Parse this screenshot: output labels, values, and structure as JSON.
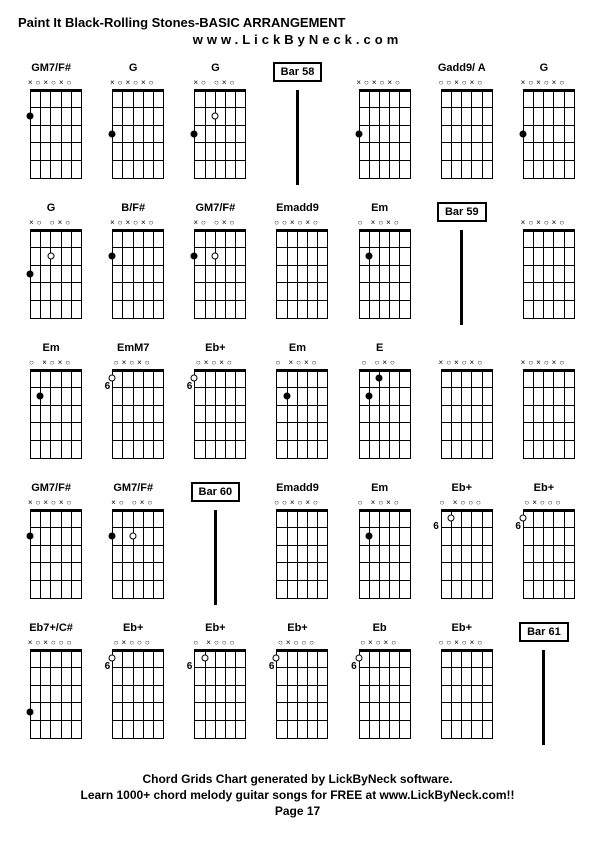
{
  "title": "Paint It Black-Rolling Stones-BASIC ARRANGEMENT",
  "subtitle": "www.LickByNeck.com",
  "footer": {
    "line1": "Chord Grids Chart generated by LickByNeck software.",
    "line2": "Learn 1000+ chord melody guitar songs for FREE at www.LickByNeck.com!!",
    "line3": "Page 17"
  },
  "diagram": {
    "width": 52,
    "height": 90,
    "num_strings": 6,
    "num_frets": 5,
    "nut_thickness": 3,
    "dot_size": 7,
    "colors": {
      "background": "#ffffff",
      "lines": "#000000",
      "dot": "#000000",
      "text": "#000000"
    }
  },
  "cells": [
    {
      "type": "chord",
      "name": "GM7/F#",
      "markers": "×○×○×○",
      "fret": "",
      "dots": [
        {
          "s": 0,
          "f": 2
        }
      ]
    },
    {
      "type": "chord",
      "name": "G",
      "markers": "×○×○×○",
      "fret": "",
      "dots": [
        {
          "s": 0,
          "f": 3
        }
      ]
    },
    {
      "type": "chord",
      "name": "G",
      "markers": "×○ ○×○",
      "fret": "",
      "dots": [
        {
          "s": 0,
          "f": 3
        },
        {
          "s": 2,
          "f": 2,
          "open": true
        }
      ]
    },
    {
      "type": "bar",
      "label": "Bar 58"
    },
    {
      "type": "chord",
      "name": "",
      "markers": "×○×○×○",
      "fret": "",
      "dots": [
        {
          "s": 0,
          "f": 3
        }
      ]
    },
    {
      "type": "chord",
      "name": "Gadd9/ A",
      "markers": "○○×○×○",
      "fret": "",
      "dots": []
    },
    {
      "type": "chord",
      "name": "G",
      "markers": "×○×○×○",
      "fret": "",
      "dots": [
        {
          "s": 0,
          "f": 3
        }
      ]
    },
    {
      "type": "chord",
      "name": "G",
      "markers": "×○ ○×○",
      "fret": "",
      "dots": [
        {
          "s": 0,
          "f": 3
        },
        {
          "s": 2,
          "f": 2,
          "open": true
        }
      ]
    },
    {
      "type": "chord",
      "name": "B/F#",
      "markers": "×○×○×○",
      "fret": "",
      "dots": [
        {
          "s": 0,
          "f": 2
        }
      ]
    },
    {
      "type": "chord",
      "name": "GM7/F#",
      "markers": "×○ ○×○",
      "fret": "",
      "dots": [
        {
          "s": 0,
          "f": 2
        },
        {
          "s": 2,
          "f": 2,
          "open": true
        }
      ]
    },
    {
      "type": "chord",
      "name": "Emadd9",
      "markers": "○○×○×○",
      "fret": "",
      "dots": []
    },
    {
      "type": "chord",
      "name": "Em",
      "markers": "○ ×○×○",
      "fret": "",
      "dots": [
        {
          "s": 1,
          "f": 2
        }
      ]
    },
    {
      "type": "bar",
      "label": "Bar 59"
    },
    {
      "type": "chord",
      "name": "",
      "markers": "×○×○×○",
      "fret": "",
      "dots": []
    },
    {
      "type": "chord",
      "name": "Em",
      "markers": "○ ×○×○",
      "fret": "",
      "dots": [
        {
          "s": 1,
          "f": 2
        }
      ]
    },
    {
      "type": "chord",
      "name": "EmM7",
      "markers": " ○×○×○",
      "fret": "6",
      "dots": [
        {
          "s": 0,
          "f": 1,
          "open": true
        }
      ]
    },
    {
      "type": "chord",
      "name": "Eb+",
      "markers": " ○×○×○",
      "fret": "6",
      "dots": [
        {
          "s": 0,
          "f": 1,
          "open": true
        }
      ]
    },
    {
      "type": "chord",
      "name": "Em",
      "markers": "○ ×○×○",
      "fret": "",
      "dots": [
        {
          "s": 1,
          "f": 2
        }
      ]
    },
    {
      "type": "chord",
      "name": "E",
      "markers": "○  ○×○",
      "fret": "",
      "dots": [
        {
          "s": 1,
          "f": 2
        },
        {
          "s": 2,
          "f": 1
        }
      ]
    },
    {
      "type": "chord",
      "name": "",
      "markers": "×○×○×○",
      "fret": "",
      "dots": []
    },
    {
      "type": "chord",
      "name": "",
      "markers": "×○×○×○",
      "fret": "",
      "dots": []
    },
    {
      "type": "chord",
      "name": "GM7/F#",
      "markers": "×○×○×○",
      "fret": "",
      "dots": [
        {
          "s": 0,
          "f": 2
        }
      ]
    },
    {
      "type": "chord",
      "name": "GM7/F#",
      "markers": "×○ ○×○",
      "fret": "",
      "dots": [
        {
          "s": 0,
          "f": 2
        },
        {
          "s": 2,
          "f": 2,
          "open": true
        }
      ]
    },
    {
      "type": "bar",
      "label": "Bar 60"
    },
    {
      "type": "chord",
      "name": "Emadd9",
      "markers": "○○×○×○",
      "fret": "",
      "dots": []
    },
    {
      "type": "chord",
      "name": "Em",
      "markers": "○ ×○×○",
      "fret": "",
      "dots": [
        {
          "s": 1,
          "f": 2
        }
      ]
    },
    {
      "type": "chord",
      "name": "Eb+",
      "markers": "○ ×○○○",
      "fret": "6",
      "dots": [
        {
          "s": 1,
          "f": 1,
          "open": true
        }
      ]
    },
    {
      "type": "chord",
      "name": "Eb+",
      "markers": " ○×○○○",
      "fret": "6",
      "dots": [
        {
          "s": 0,
          "f": 1,
          "open": true
        }
      ]
    },
    {
      "type": "chord",
      "name": "Eb7+/C#",
      "markers": "×○×○○○",
      "fret": "",
      "dots": [
        {
          "s": 0,
          "f": 4
        }
      ]
    },
    {
      "type": "chord",
      "name": "Eb+",
      "markers": " ○×○○○",
      "fret": "6",
      "dots": [
        {
          "s": 0,
          "f": 1,
          "open": true
        }
      ]
    },
    {
      "type": "chord",
      "name": "Eb+",
      "markers": "○ ×○○○",
      "fret": "6",
      "dots": [
        {
          "s": 1,
          "f": 1,
          "open": true
        }
      ]
    },
    {
      "type": "chord",
      "name": "Eb+",
      "markers": " ○×○○○",
      "fret": "6",
      "dots": [
        {
          "s": 0,
          "f": 1,
          "open": true
        }
      ]
    },
    {
      "type": "chord",
      "name": "Eb",
      "markers": " ○×○×○",
      "fret": "6",
      "dots": [
        {
          "s": 0,
          "f": 1,
          "open": true
        }
      ]
    },
    {
      "type": "chord",
      "name": "Eb+",
      "markers": "○○×○×○",
      "fret": "",
      "dots": []
    },
    {
      "type": "bar",
      "label": "Bar 61"
    }
  ]
}
